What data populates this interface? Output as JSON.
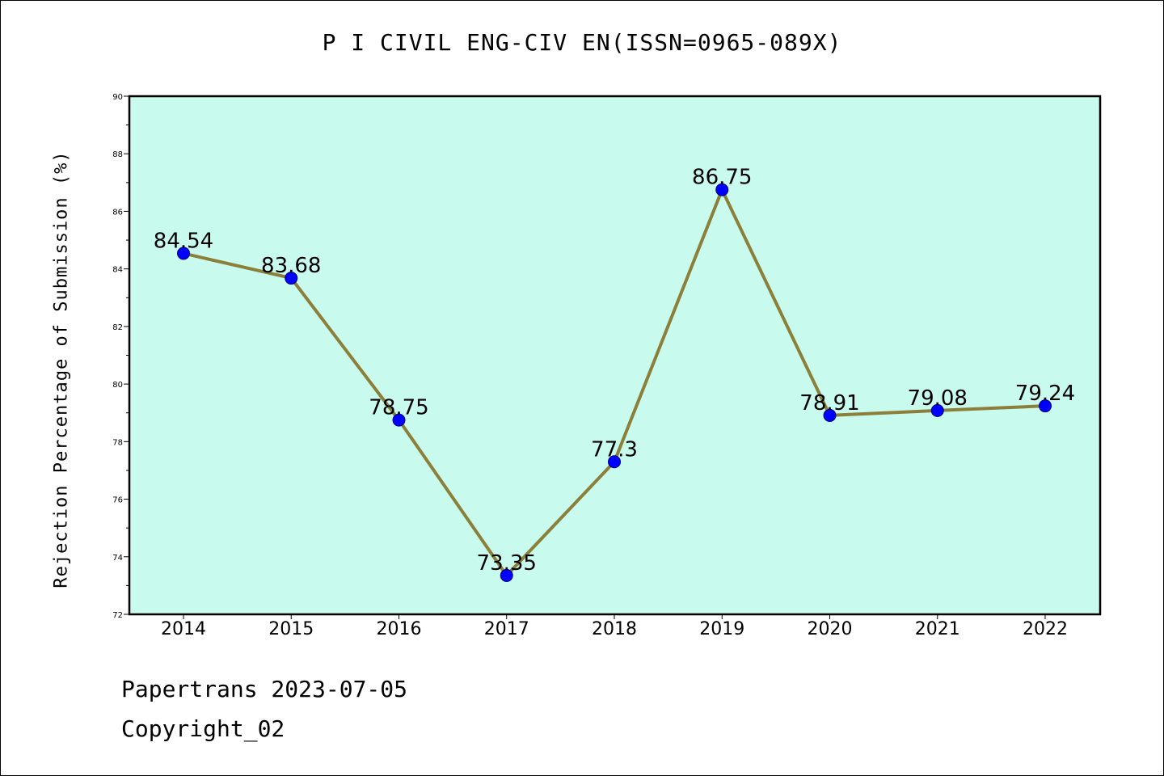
{
  "chart_data": {
    "type": "line",
    "title": "P I CIVIL ENG-CIV EN(ISSN=0965-089X)",
    "xlabel": "",
    "ylabel": "Rejection Percentage of Submission (%)",
    "categories": [
      "2014",
      "2015",
      "2016",
      "2017",
      "2018",
      "2019",
      "2020",
      "2021",
      "2022"
    ],
    "values": [
      84.54,
      83.68,
      78.75,
      73.35,
      77.3,
      86.75,
      78.91,
      79.08,
      79.24
    ],
    "data_labels": [
      "84.54",
      "83.68",
      "78.75",
      "73.35",
      "77.3",
      "86.75",
      "78.91",
      "79.08",
      "79.24"
    ],
    "ylim": [
      72,
      90
    ],
    "yticks": [
      72,
      74,
      76,
      78,
      80,
      82,
      84,
      86,
      88,
      90
    ],
    "grid": false,
    "legend": "none",
    "colors": {
      "plot_background": "#c8fbee",
      "line": "#8b7f3a",
      "marker": "#0000ff",
      "axes": "#000000"
    }
  },
  "footer": {
    "line1": "Papertrans 2023-07-05",
    "line2": "Copyright_02"
  }
}
